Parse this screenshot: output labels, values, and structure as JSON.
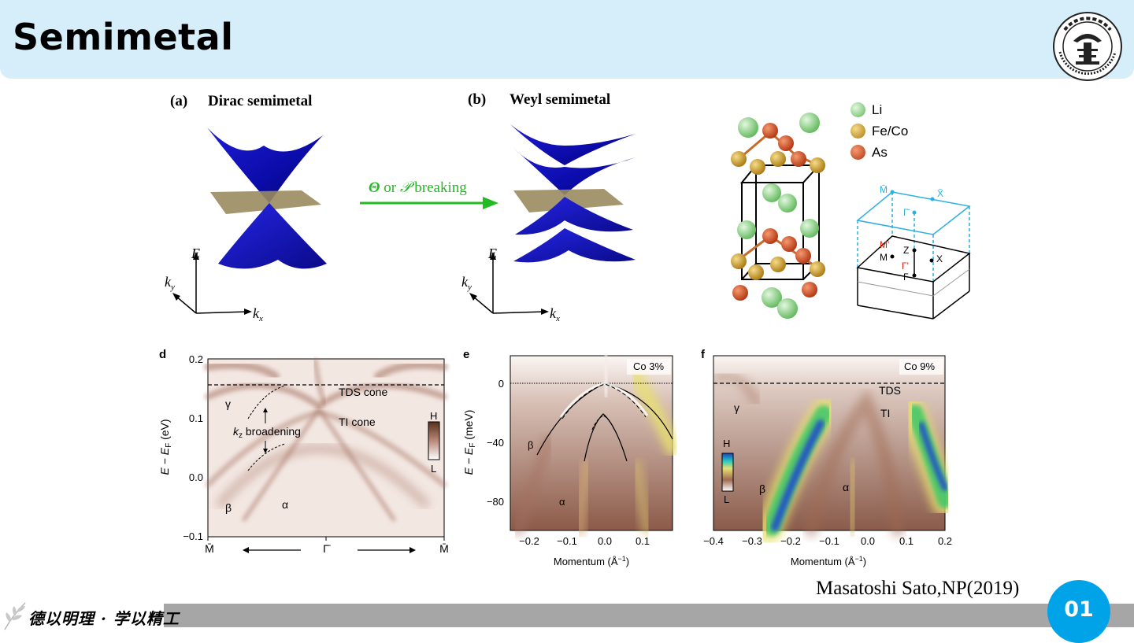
{
  "header": {
    "title": "Semimetal"
  },
  "panel_a": {
    "label": "(a)",
    "title": "Dirac semimetal",
    "axis_e": "E",
    "axis_kx": "k",
    "axis_kx_sub": "x",
    "axis_ky": "k",
    "axis_ky_sub": "y"
  },
  "arrow": {
    "symbol1": "Θ",
    "or": "or",
    "symbol2": "𝒫",
    "text": "breaking",
    "color": "#22bb22"
  },
  "panel_b": {
    "label": "(b)",
    "title": "Weyl semimetal",
    "axis_e": "E",
    "axis_kx": "k",
    "axis_kx_sub": "x",
    "axis_ky": "k",
    "axis_ky_sub": "y"
  },
  "crystal": {
    "legend": [
      {
        "label": "Li",
        "color": "#7ed37a"
      },
      {
        "label": "Fe/Co",
        "color": "#c8961e"
      },
      {
        "label": "As",
        "color": "#d24a1e"
      }
    ]
  },
  "brillouin": {
    "top_labels": [
      "M̄",
      "X̄",
      "Γ̄"
    ],
    "mid_labels": [
      "M'",
      "Z",
      "M",
      "X",
      "Γ'",
      "Γ"
    ]
  },
  "panel_d": {
    "label": "d",
    "yaxis_title": "E − E",
    "yaxis_sub": "F",
    "yaxis_unit": "(eV)",
    "yticks": [
      "0.2",
      "0.1",
      "0.0",
      "−0.1"
    ],
    "xticks": [
      "M̄",
      "Γ̄",
      "M̄"
    ],
    "annotations": {
      "tds": "TDS cone",
      "ti": "TI cone",
      "gamma": "γ",
      "beta": "β",
      "alpha": "α",
      "kz": "k",
      "kz_sub": "z",
      "broadening": " broadening"
    },
    "colorbar": {
      "high": "H",
      "low": "L"
    }
  },
  "panel_e": {
    "label": "e",
    "inset": "Co 3%",
    "yaxis_title": "E − E",
    "yaxis_sub": "F",
    "yaxis_unit": "(meV)",
    "yticks": [
      "0",
      "−40",
      "−80"
    ],
    "xticks": [
      "−0.2",
      "−0.1",
      "0.0",
      "0.1"
    ],
    "xaxis_title": "Momentum (Å",
    "xaxis_sup": "−1",
    "xaxis_close": ")",
    "annotations": {
      "beta": "β",
      "alpha": "α"
    }
  },
  "panel_f": {
    "label": "f",
    "inset": "Co 9%",
    "xticks": [
      "−0.4",
      "−0.3",
      "−0.2",
      "−0.1",
      "0.0",
      "0.1",
      "0.2"
    ],
    "xaxis_title": "Momentum (Å",
    "xaxis_sup": "−1",
    "xaxis_close": ")",
    "annotations": {
      "tds": "TDS",
      "ti": "TI",
      "gamma": "γ",
      "beta": "β",
      "alpha": "α"
    },
    "colorbar": {
      "high": "H",
      "low": "L"
    }
  },
  "footer": {
    "motto": "德以明理 · 学以精工",
    "citation": "Masatoshi Sato,NP(2019)",
    "page_number": "01"
  }
}
